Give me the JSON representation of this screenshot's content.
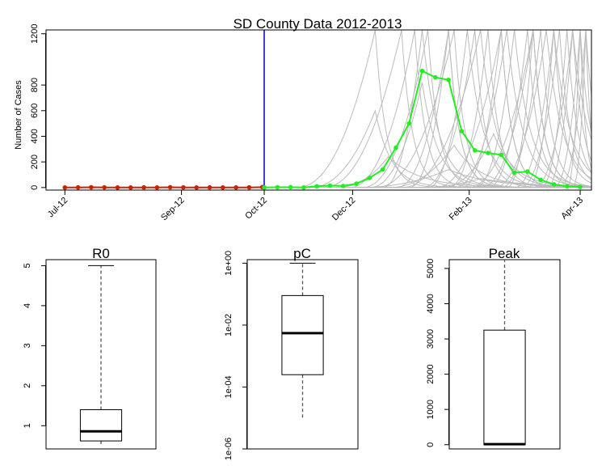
{
  "chart_data": [
    {
      "type": "line",
      "title": "SD County Data 2012-2013",
      "xlabel": "",
      "ylabel": "Number of Cases",
      "ylim": [
        -20,
        1230
      ],
      "yticks": [
        0,
        200,
        400,
        600,
        800,
        1200
      ],
      "x_axis": {
        "ticks": [
          {
            "label": "Jul-12",
            "date": "2012-07-01"
          },
          {
            "label": "Sep-12",
            "date": "2012-09-01"
          },
          {
            "label": "Oct-12",
            "date": "2012-10-15"
          },
          {
            "label": "Dec-12",
            "date": "2012-12-01"
          },
          {
            "label": "Feb-13",
            "date": "2013-02-01"
          },
          {
            "label": "Apr-13",
            "date": "2013-04-01"
          }
        ],
        "range": [
          "2012-06-21",
          "2013-04-07"
        ]
      },
      "vline": {
        "date": "2012-10-15",
        "color": "#0000cc"
      },
      "series": [
        {
          "color": "#cc2200",
          "dates": [
            "2012-07-01",
            "2012-07-08",
            "2012-07-15",
            "2012-07-22",
            "2012-07-29",
            "2012-08-05",
            "2012-08-12",
            "2012-08-19",
            "2012-08-26",
            "2012-09-02",
            "2012-09-09",
            "2012-09-16",
            "2012-09-23",
            "2012-09-30",
            "2012-10-07",
            "2012-10-14",
            "2012-10-15"
          ],
          "values": [
            0,
            1,
            2,
            1,
            0,
            0,
            1,
            0,
            2,
            1,
            0,
            1,
            0,
            0,
            1,
            3,
            0
          ]
        },
        {
          "color": "#22ee22",
          "dates": [
            "2012-10-15",
            "2012-10-22",
            "2012-10-29",
            "2012-11-05",
            "2012-11-12",
            "2012-11-19",
            "2012-11-26",
            "2012-12-03",
            "2012-12-10",
            "2012-12-17",
            "2012-12-24",
            "2012-12-31",
            "2013-01-07",
            "2013-01-14",
            "2013-01-21",
            "2013-01-28",
            "2013-02-04",
            "2013-02-11",
            "2013-02-18",
            "2013-02-25",
            "2013-03-04",
            "2013-03-11",
            "2013-03-18",
            "2013-03-25",
            "2013-04-01"
          ],
          "values": [
            0,
            2,
            3,
            0,
            10,
            15,
            12,
            30,
            75,
            140,
            310,
            500,
            910,
            860,
            840,
            440,
            290,
            270,
            255,
            115,
            125,
            60,
            25,
            10,
            5
          ]
        }
      ],
      "simulations": {
        "color": "#bbbbbb",
        "trajectories": [
          {
            "start": "2012-11-01",
            "rise": 6,
            "peak": 1230,
            "decay": 2
          },
          {
            "start": "2012-11-08",
            "rise": 5,
            "peak": 600,
            "decay": 3
          },
          {
            "start": "2012-11-15",
            "rise": 6,
            "peak": 1230,
            "decay": 2
          },
          {
            "start": "2012-11-22",
            "rise": 4,
            "peak": 240,
            "decay": 6
          },
          {
            "start": "2012-11-29",
            "rise": 5,
            "peak": 1230,
            "decay": 2
          },
          {
            "start": "2012-12-03",
            "rise": 7,
            "peak": 140,
            "decay": 8
          },
          {
            "start": "2012-12-06",
            "rise": 5,
            "peak": 1230,
            "decay": 2
          },
          {
            "start": "2012-12-10",
            "rise": 4,
            "peak": 820,
            "decay": 3
          },
          {
            "start": "2012-12-13",
            "rise": 6,
            "peak": 1230,
            "decay": 2
          },
          {
            "start": "2012-12-17",
            "rise": 3,
            "peak": 1230,
            "decay": 3
          },
          {
            "start": "2012-12-20",
            "rise": 5,
            "peak": 330,
            "decay": 5
          },
          {
            "start": "2012-12-24",
            "rise": 4,
            "peak": 1230,
            "decay": 2
          },
          {
            "start": "2012-12-27",
            "rise": 6,
            "peak": 1230,
            "decay": 3
          },
          {
            "start": "2012-12-31",
            "rise": 3,
            "peak": 1230,
            "decay": 2
          },
          {
            "start": "2013-01-03",
            "rise": 5,
            "peak": 70,
            "decay": 10
          },
          {
            "start": "2013-01-07",
            "rise": 4,
            "peak": 1230,
            "decay": 2
          },
          {
            "start": "2013-01-10",
            "rise": 3,
            "peak": 1230,
            "decay": 3
          },
          {
            "start": "2013-01-14",
            "rise": 5,
            "peak": 1230,
            "decay": 2
          },
          {
            "start": "2013-01-17",
            "rise": 4,
            "peak": 420,
            "decay": 4
          },
          {
            "start": "2013-01-21",
            "rise": 3,
            "peak": 1230,
            "decay": 2
          },
          {
            "start": "2013-01-24",
            "rise": 4,
            "peak": 1230,
            "decay": 3
          },
          {
            "start": "2013-01-28",
            "rise": 3,
            "peak": 1230,
            "decay": 2
          },
          {
            "start": "2013-01-31",
            "rise": 5,
            "peak": 1230,
            "decay": 2
          },
          {
            "start": "2013-02-04",
            "rise": 3,
            "peak": 1230,
            "decay": 3
          },
          {
            "start": "2013-02-07",
            "rise": 4,
            "peak": 1230,
            "decay": 2
          },
          {
            "start": "2013-02-11",
            "rise": 3,
            "peak": 1230,
            "decay": 2
          },
          {
            "start": "2013-02-14",
            "rise": 4,
            "peak": 1230,
            "decay": 3
          },
          {
            "start": "2013-02-18",
            "rise": 3,
            "peak": 1230,
            "decay": 2
          },
          {
            "start": "2013-02-21",
            "rise": 2,
            "peak": 1230,
            "decay": 2
          },
          {
            "start": "2013-02-25",
            "rise": 3,
            "peak": 1230,
            "decay": 3
          },
          {
            "start": "2013-02-28",
            "rise": 3,
            "peak": 1230,
            "decay": 2
          },
          {
            "start": "2013-03-04",
            "rise": 2,
            "peak": 1230,
            "decay": 2
          },
          {
            "start": "2013-03-07",
            "rise": 3,
            "peak": 1230,
            "decay": 3
          },
          {
            "start": "2013-03-11",
            "rise": 2,
            "peak": 1230,
            "decay": 2
          },
          {
            "start": "2013-03-14",
            "rise": 2,
            "peak": 1230,
            "decay": 2
          },
          {
            "start": "2013-03-18",
            "rise": 2,
            "peak": 1230,
            "decay": 2
          },
          {
            "start": "2013-03-21",
            "rise": 2,
            "peak": 1230,
            "decay": 2
          },
          {
            "start": "2013-03-25",
            "rise": 1,
            "peak": 1230,
            "decay": 1
          },
          {
            "start": "2013-03-28",
            "rise": 1,
            "peak": 1230,
            "decay": 1
          }
        ]
      }
    },
    {
      "type": "boxplot",
      "title": "R0",
      "ylim": [
        0.42,
        5.15
      ],
      "yticks": [
        1,
        2,
        3,
        4,
        5
      ],
      "box": {
        "whisker_low": 0.5,
        "q1": 0.62,
        "median": 0.86,
        "q3": 1.4,
        "whisker_high": 5.0
      }
    },
    {
      "type": "boxplot",
      "title": "pC",
      "log_scale": true,
      "ylim": [
        1e-06,
        1.3
      ],
      "yticks": [
        1e-06,
        0.0001,
        0.01,
        1
      ],
      "ytick_labels": [
        "1e-06",
        "1e-04",
        "1e-02",
        "1e+00"
      ],
      "box": {
        "whisker_low": 9e-06,
        "q1": 0.00025,
        "median": 0.0055,
        "q3": 0.09,
        "whisker_high": 1.0
      }
    },
    {
      "type": "boxplot",
      "title": "Peak",
      "ylim": [
        -120,
        5250
      ],
      "yticks": [
        0,
        1000,
        2000,
        3000,
        4000,
        5000
      ],
      "box": {
        "whisker_low": 0,
        "q1": 0,
        "median": 15,
        "q3": 3250,
        "whisker_high": 5250
      }
    }
  ]
}
